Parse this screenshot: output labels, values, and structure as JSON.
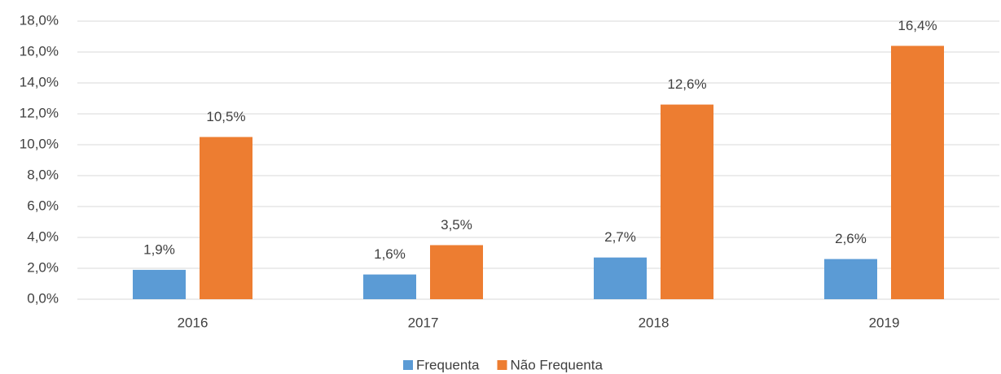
{
  "chart_data": {
    "type": "bar",
    "categories": [
      "2016",
      "2017",
      "2018",
      "2019"
    ],
    "series": [
      {
        "name": "Frequenta",
        "color": "#5b9bd5",
        "values": [
          1.9,
          1.6,
          2.7,
          2.6
        ],
        "value_labels": [
          "1,9%",
          "1,6%",
          "2,7%",
          "2,6%"
        ]
      },
      {
        "name": "Não Frequenta",
        "color": "#ed7d31",
        "values": [
          10.5,
          3.5,
          12.6,
          16.4
        ],
        "value_labels": [
          "10,5%",
          "3,5%",
          "12,6%",
          "16,4%"
        ]
      }
    ],
    "ylim": [
      0,
      18
    ],
    "yticks": [
      {
        "value": 0,
        "label": "0,0%"
      },
      {
        "value": 2,
        "label": "2,0%"
      },
      {
        "value": 4,
        "label": "4,0%"
      },
      {
        "value": 6,
        "label": "6,0%"
      },
      {
        "value": 8,
        "label": "8,0%"
      },
      {
        "value": 10,
        "label": "10,0%"
      },
      {
        "value": 12,
        "label": "12,0%"
      },
      {
        "value": 14,
        "label": "14,0%"
      },
      {
        "value": 16,
        "label": "16,0%"
      },
      {
        "value": 18,
        "label": "18,0%"
      }
    ],
    "grid": true,
    "legend": "bottom"
  }
}
